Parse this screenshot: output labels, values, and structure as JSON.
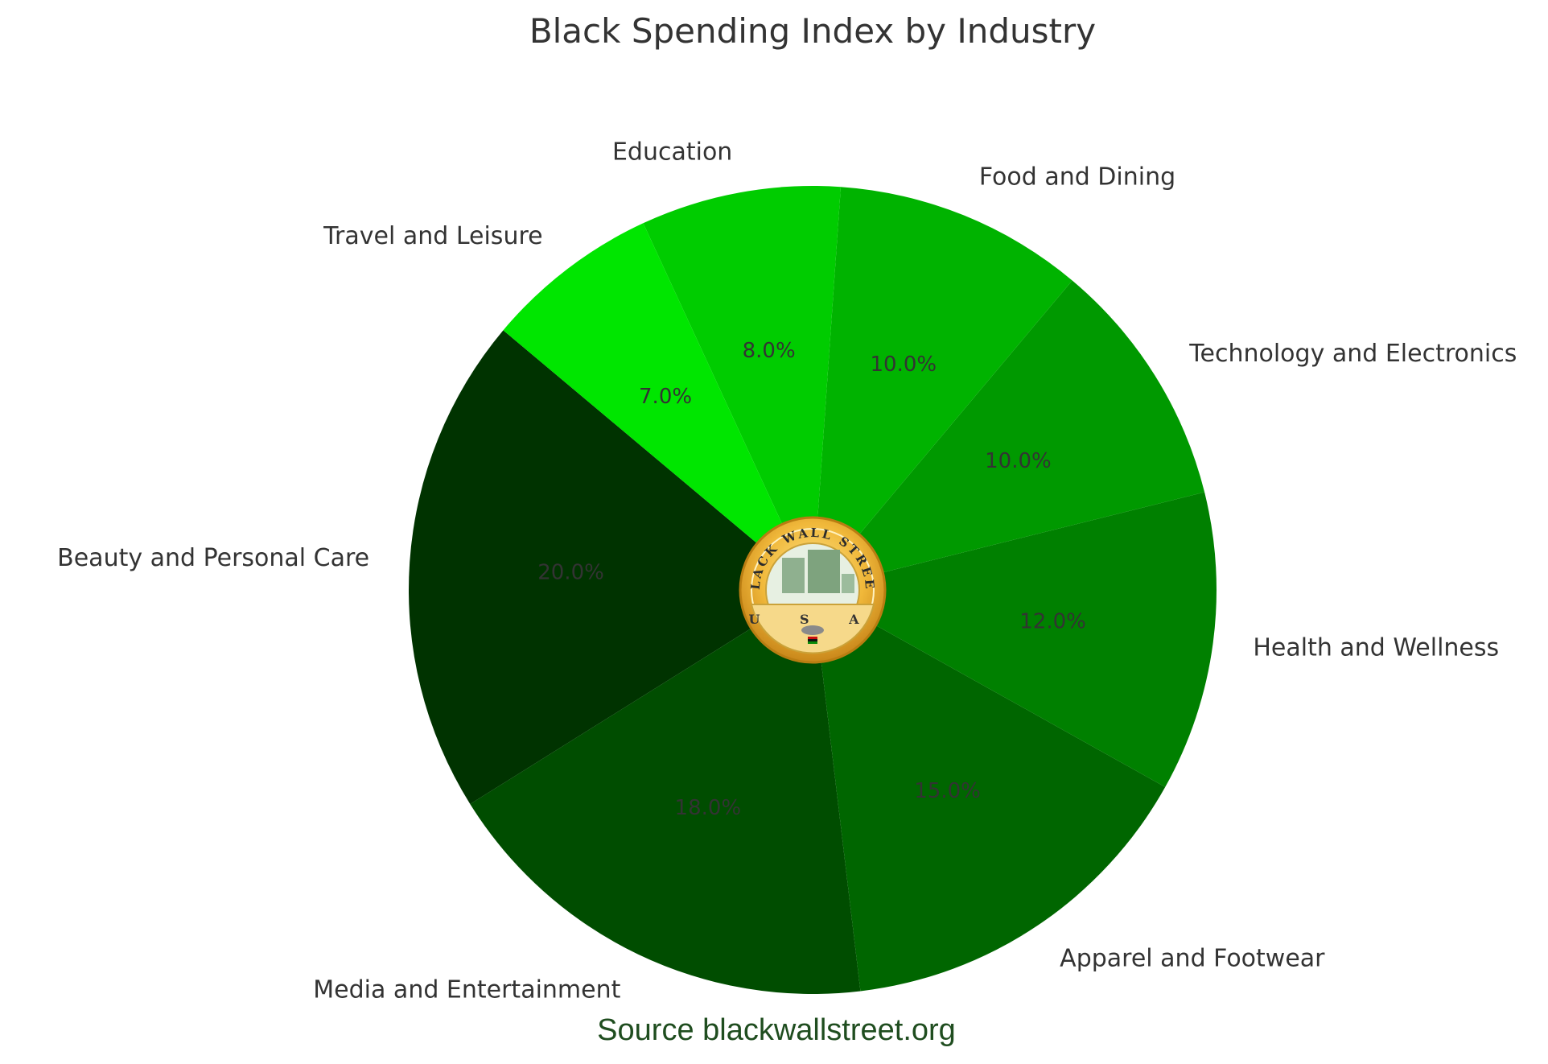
{
  "chart_data": {
    "type": "pie",
    "title": "Black Spending Index by Industry",
    "categories": [
      "Beauty and Personal Care",
      "Media and Entertainment",
      "Apparel and Footwear",
      "Health and Wellness",
      "Technology and Electronics",
      "Food and Dining",
      "Education",
      "Travel and Leisure"
    ],
    "values": [
      20,
      18,
      15,
      12,
      10,
      10,
      8,
      7
    ],
    "labels": [
      "20.0%",
      "18.0%",
      "15.0%",
      "12.0%",
      "10.0%",
      "10.0%",
      "8.0%",
      "7.0%"
    ],
    "colors": [
      "#003300",
      "#004d00",
      "#006600",
      "#008000",
      "#009900",
      "#00b300",
      "#00cc00",
      "#00e600"
    ],
    "start_angle_deg": 140,
    "direction": "counterclockwise",
    "legend": "none"
  },
  "source": {
    "text": "Source blackwallstreet.org"
  },
  "logo": {
    "top_text": "BLACK WALL STREET",
    "bottom_text": "U S A"
  }
}
